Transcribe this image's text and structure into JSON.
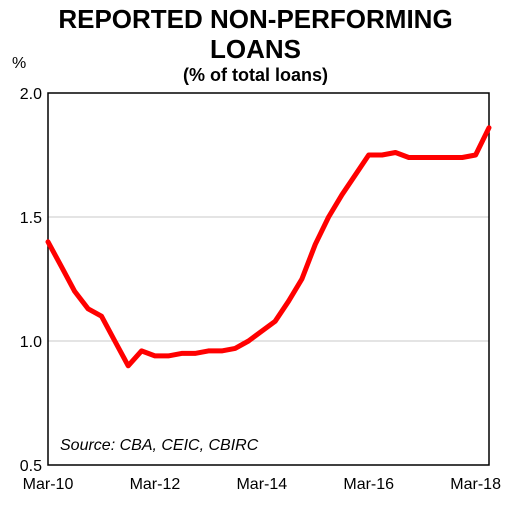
{
  "chart_data": {
    "type": "line",
    "title_line1": "REPORTED NON-PERFORMING",
    "title_line2": "LOANS",
    "subtitle": "(% of total loans)",
    "ylabel": "%",
    "source": "Source: CBA, CEIC, CBIRC",
    "ylim": [
      0.5,
      2.0
    ],
    "yticks": [
      "0.5",
      "1.0",
      "1.5",
      "2.0"
    ],
    "ytick_values": [
      0.5,
      1.0,
      1.5,
      2.0
    ],
    "xticks": [
      "Mar-10",
      "Mar-12",
      "Mar-14",
      "Mar-16",
      "Mar-18"
    ],
    "xtick_index": [
      0,
      8,
      16,
      24,
      32
    ],
    "x_count": 34,
    "grid": true,
    "line_color": "#ff0000",
    "values": [
      1.4,
      1.3,
      1.2,
      1.13,
      1.1,
      1.0,
      0.9,
      0.96,
      0.94,
      0.94,
      0.95,
      0.95,
      0.96,
      0.96,
      0.97,
      1.0,
      1.04,
      1.08,
      1.16,
      1.25,
      1.39,
      1.5,
      1.59,
      1.67,
      1.75,
      1.75,
      1.76,
      1.74,
      1.74,
      1.74,
      1.74,
      1.74,
      1.75,
      1.86
    ]
  }
}
